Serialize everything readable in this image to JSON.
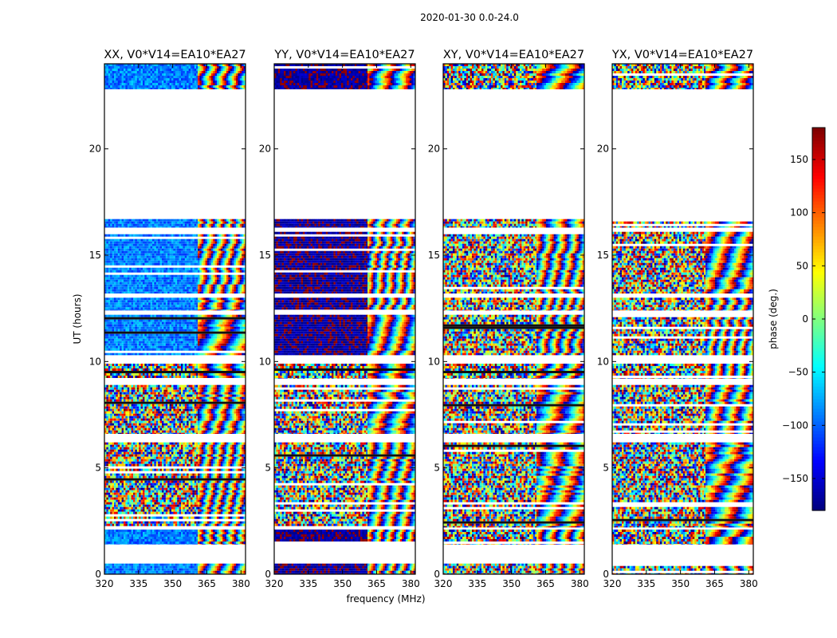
{
  "chart_data": {
    "type": "heatmap",
    "title": "2020-01-30 0.0-24.0",
    "xlabel": "frequency (MHz)",
    "ylabel": "UT (hours)",
    "xlim": [
      320,
      382
    ],
    "ylim": [
      0,
      24
    ],
    "x_ticks": [
      320,
      335,
      350,
      365,
      380
    ],
    "y_ticks": [
      0,
      5,
      10,
      15,
      20
    ],
    "colorbar": {
      "label": "phase (deg.)",
      "range": [
        -180,
        180
      ],
      "ticks": [
        -150,
        -100,
        -50,
        0,
        50,
        100,
        150
      ],
      "tick_labels": [
        "−150",
        "−100",
        "−50",
        "0",
        "50",
        "100",
        "150"
      ],
      "colormap": "jet"
    },
    "panels": [
      {
        "title": "XX, V0*V14=EA10*EA27",
        "pol": "XX",
        "base_phase": -80,
        "spread": 30,
        "left_hue_phase": -90
      },
      {
        "title": "YY, V0*V14=EA10*EA27",
        "pol": "YY",
        "base_phase": -170,
        "spread": 20,
        "left_hue_phase": -170
      },
      {
        "title": "XY, V0*V14=EA10*EA27",
        "pol": "XY",
        "base_phase": 100,
        "spread": 180,
        "left_hue_phase": 110
      },
      {
        "title": "YX, V0*V14=EA10*EA27",
        "pol": "YX",
        "base_phase": 170,
        "spread": 180,
        "left_hue_phase": 170
      }
    ],
    "fringe_start_MHz": 361,
    "data_segments_hours": [
      [
        0.0,
        0.5
      ],
      [
        1.4,
        2.1
      ],
      [
        2.2,
        6.2
      ],
      [
        6.6,
        8.9
      ],
      [
        9.2,
        9.9
      ],
      [
        10.3,
        12.2
      ],
      [
        12.4,
        13.0
      ],
      [
        13.2,
        16.1
      ],
      [
        16.3,
        16.7
      ],
      [
        22.8,
        24.0
      ]
    ],
    "gap_hours": [
      [
        0.5,
        1.4
      ],
      [
        16.7,
        22.8
      ]
    ]
  },
  "axes_labels": {
    "suptitle": "2020-01-30 0.0-24.0",
    "xlabel": "frequency (MHz)",
    "ylabel": "UT (hours)",
    "colorbar_label": "phase (deg.)"
  },
  "colors": {
    "frame": "#000000",
    "background": "#ffffff"
  }
}
